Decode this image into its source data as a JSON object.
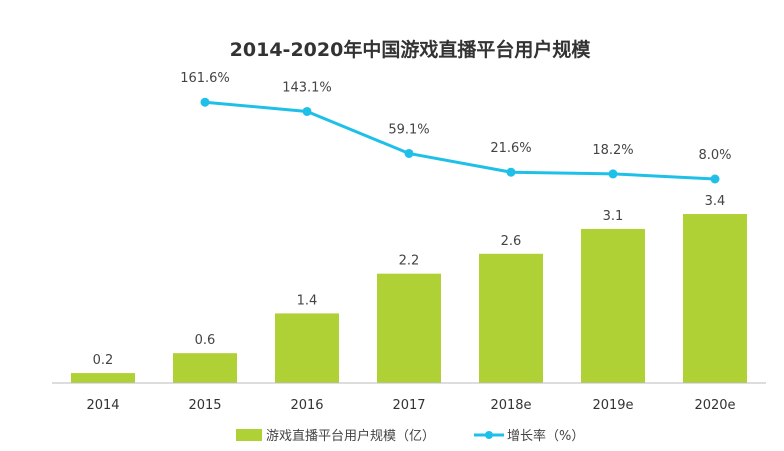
{
  "chart_data": {
    "type": "bar+line",
    "title": "2014-2020年中国游戏直播平台用户规模",
    "categories": [
      "2014",
      "2015",
      "2016",
      "2017",
      "2018e",
      "2019e",
      "2020e"
    ],
    "series": [
      {
        "name": "游戏直播平台用户规模（亿）",
        "type": "bar",
        "color": "#b0d136",
        "values": [
          0.2,
          0.6,
          1.4,
          2.2,
          2.6,
          3.1,
          3.4
        ],
        "labels": [
          "0.2",
          "0.6",
          "1.4",
          "2.2",
          "2.6",
          "3.1",
          "3.4"
        ]
      },
      {
        "name": "增长率（%）",
        "type": "line",
        "color": "#1fc0e8",
        "values": [
          null,
          161.6,
          143.1,
          59.1,
          21.6,
          18.2,
          8.0
        ],
        "labels": [
          "",
          "161.6%",
          "143.1%",
          "59.1%",
          "21.6%",
          "18.2%",
          "8.0%"
        ]
      }
    ],
    "legend_position": "bottom",
    "grid": false
  }
}
